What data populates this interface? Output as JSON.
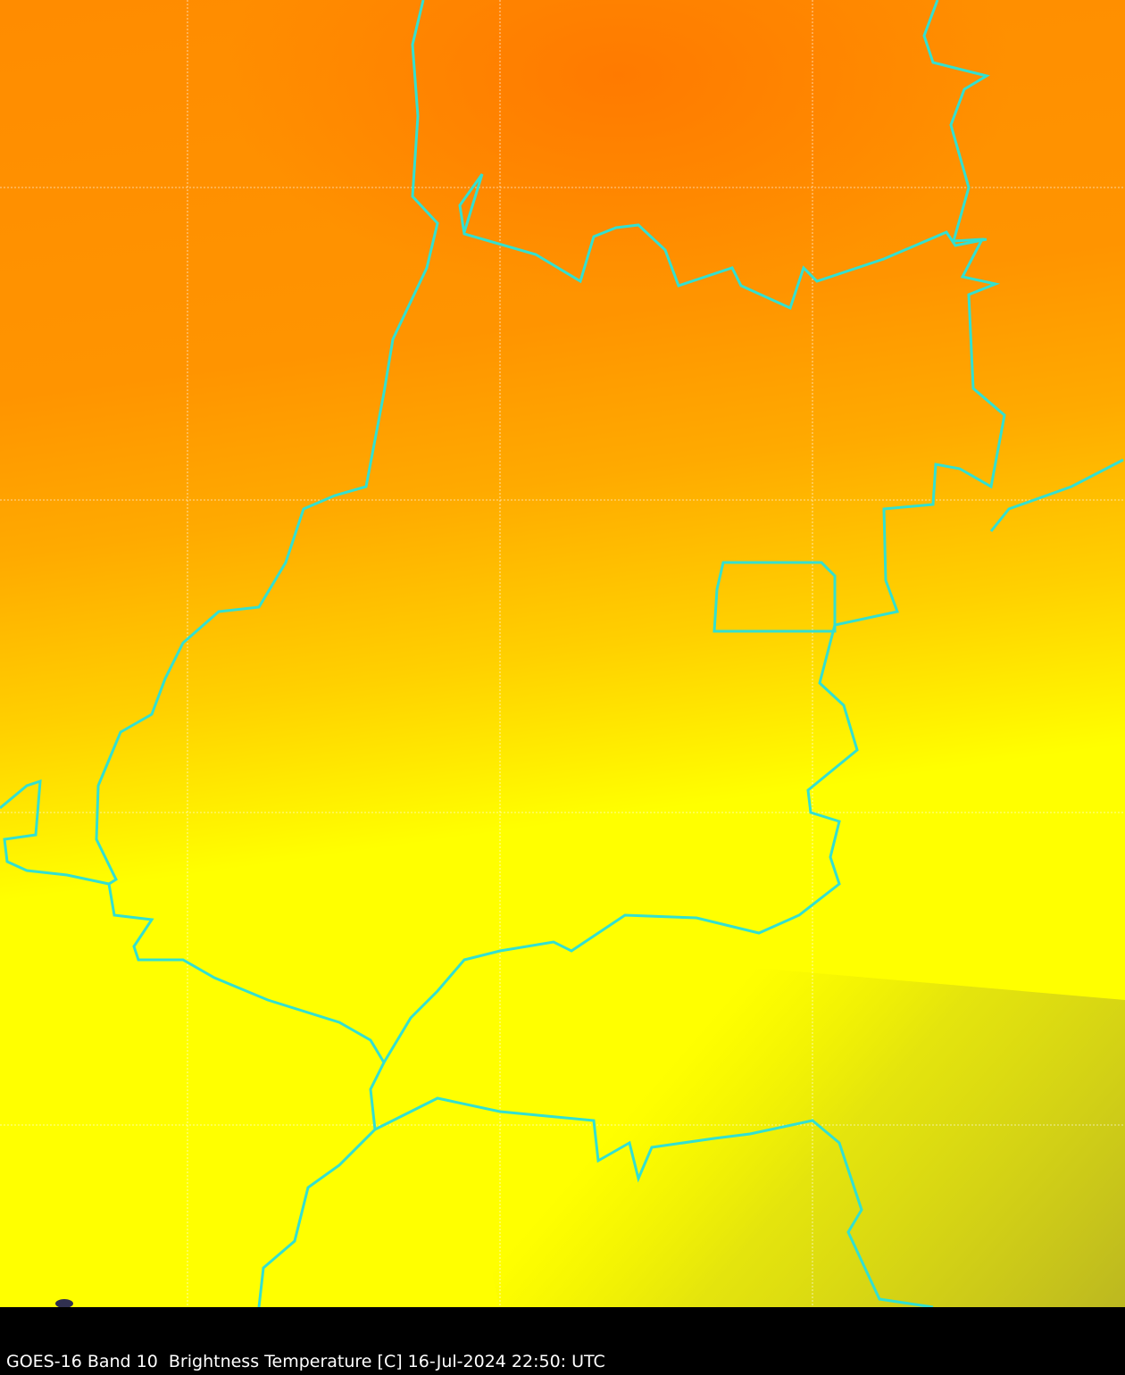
{
  "caption": "GOES-16 Band 10  Brightness Temperature [C] 16-Jul-2024 22:50: UTC",
  "colors": {
    "warm_top": "#ff8000",
    "mid": "#ffb000",
    "cool": "#ffff00",
    "coldest": "#c0bc20",
    "borders": "#33e0d0",
    "grid": "#ffffff",
    "background": "#000000"
  }
}
